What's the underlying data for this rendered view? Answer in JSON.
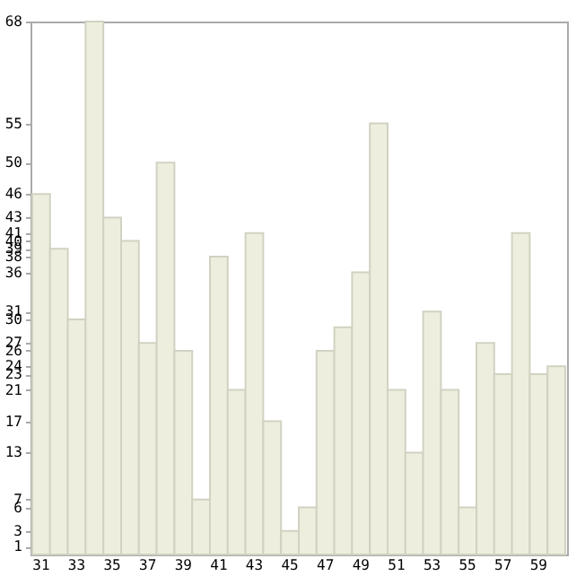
{
  "chart_data": {
    "type": "bar",
    "categories": [
      "31",
      null,
      "33",
      null,
      "35",
      null,
      "37",
      null,
      "39",
      null,
      "41",
      null,
      "43",
      null,
      "45",
      null,
      "47",
      null,
      "49",
      null,
      "51",
      null,
      "53",
      null,
      "55",
      null,
      "57",
      null,
      "59",
      null
    ],
    "values": [
      46,
      39,
      30,
      68,
      43,
      40,
      27,
      50,
      26,
      7,
      38,
      21,
      41,
      17,
      3,
      6,
      26,
      29,
      36,
      55,
      21,
      13,
      31,
      21,
      6,
      27,
      23,
      41,
      23,
      24
    ],
    "color": "#eeeedf",
    "ylim": [
      0,
      68
    ],
    "yticks": [
      1,
      3,
      6,
      7,
      13,
      17,
      21,
      23,
      24,
      26,
      27,
      30,
      31,
      36,
      38,
      39,
      40,
      41,
      43,
      46,
      50,
      55,
      68
    ],
    "grid": false
  }
}
